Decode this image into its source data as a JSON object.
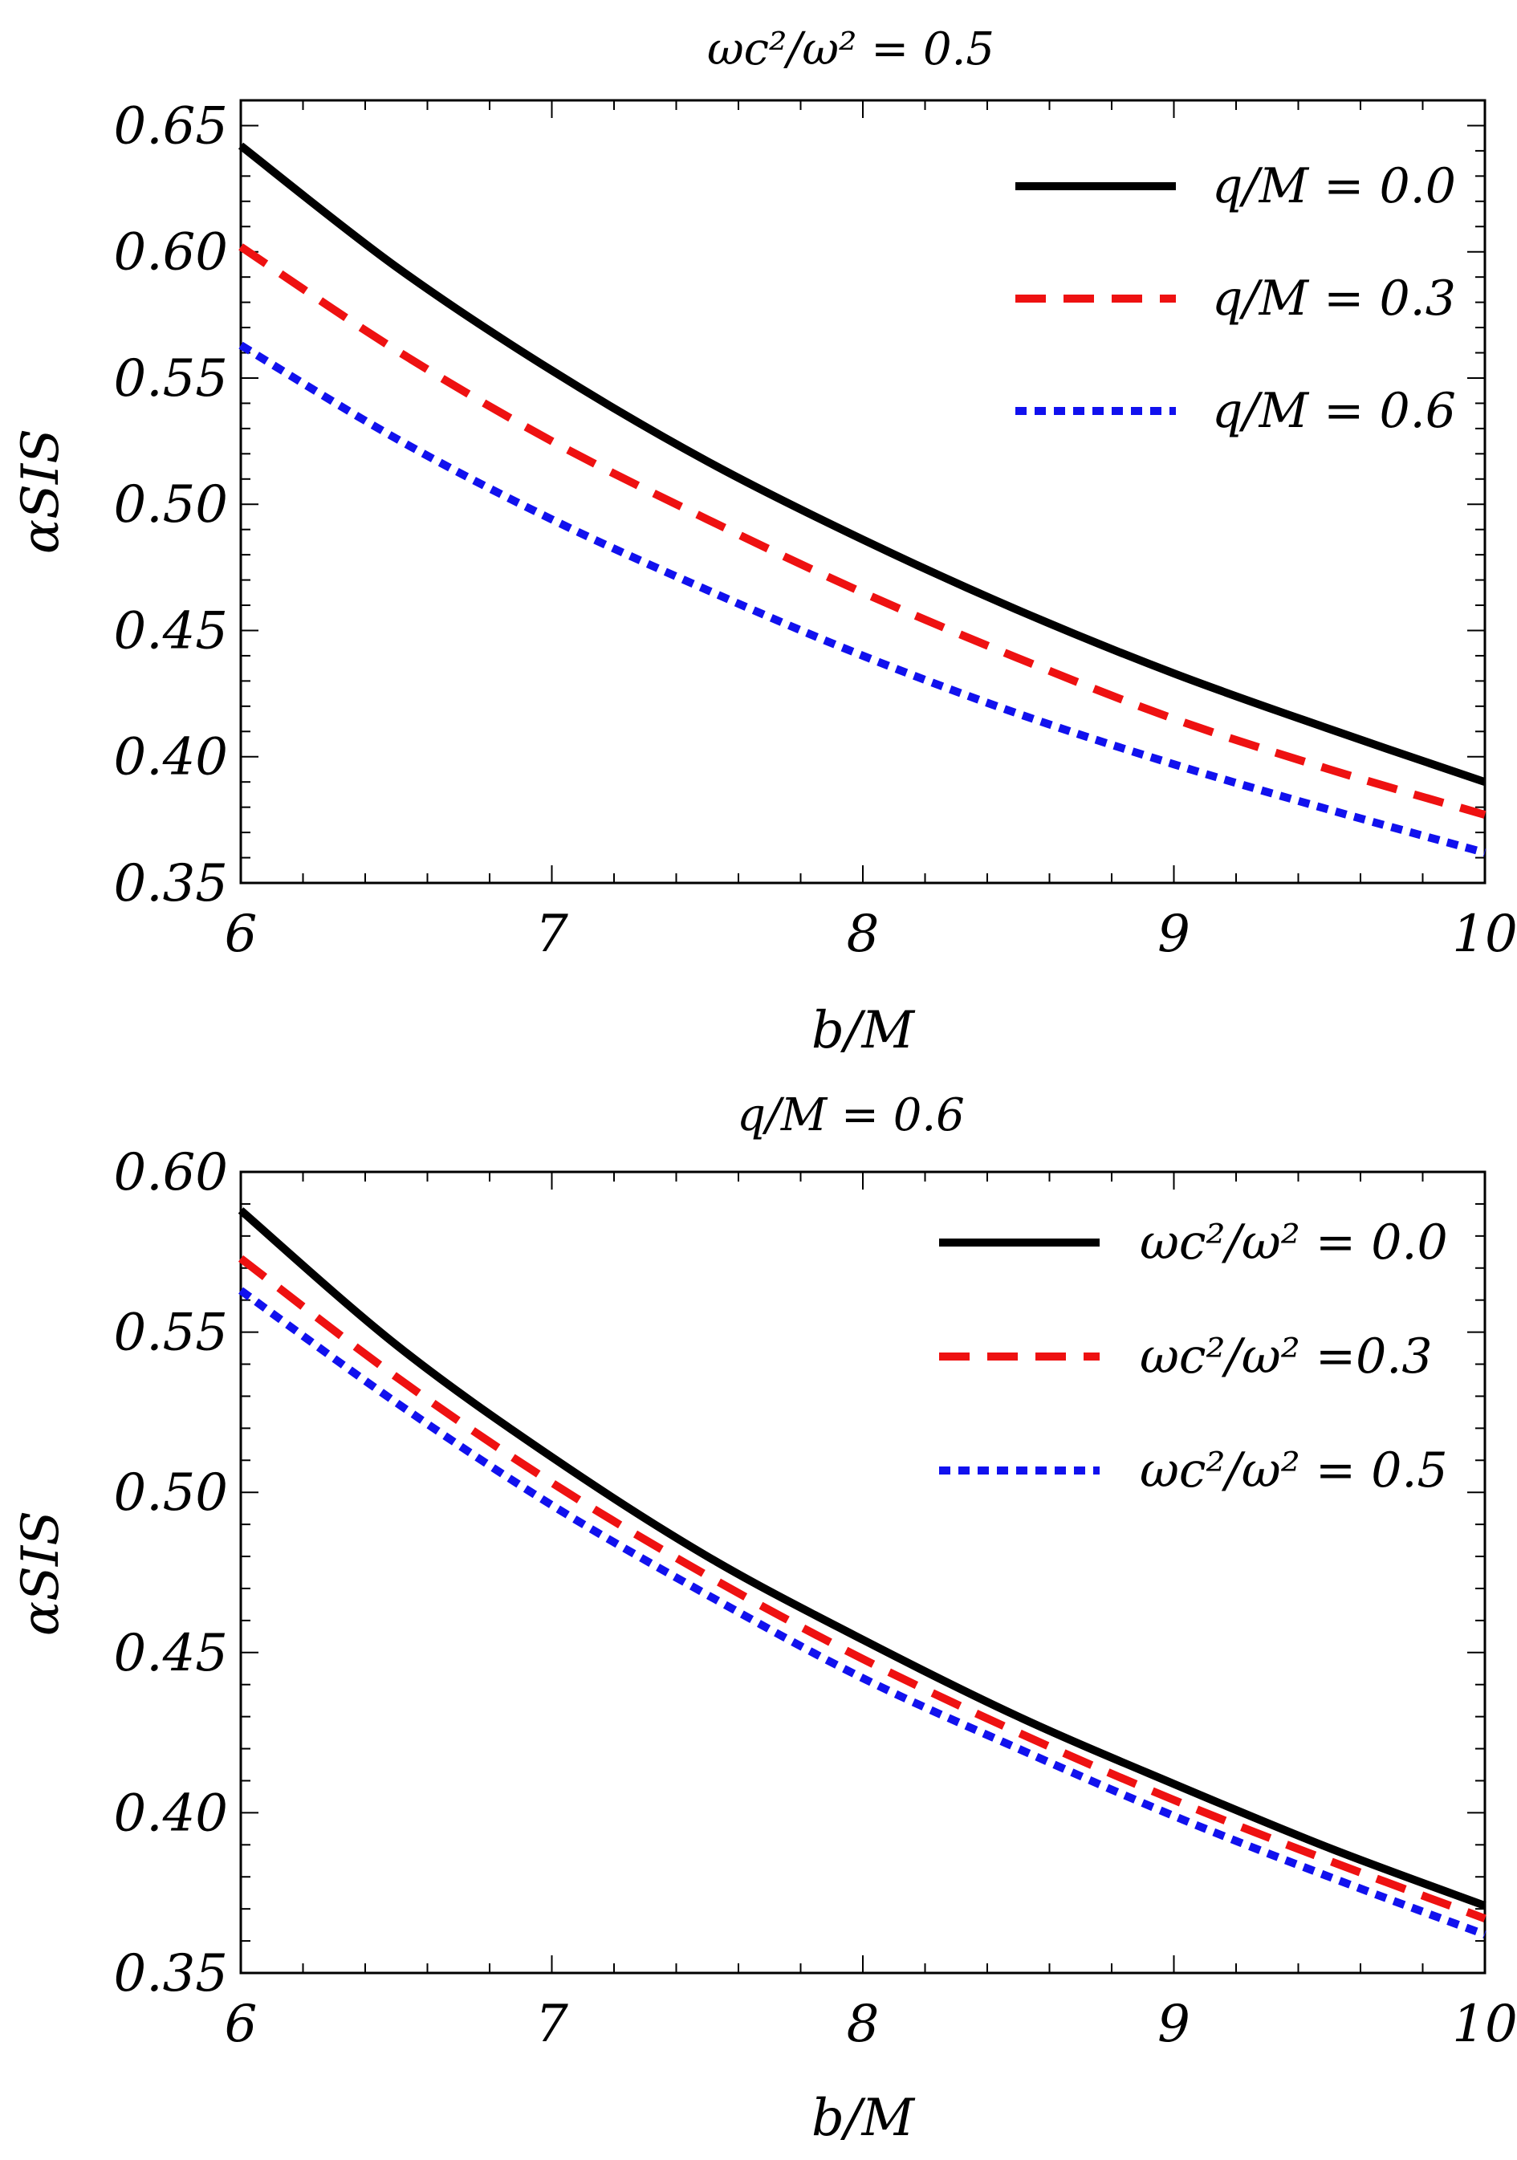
{
  "chart_data": [
    {
      "type": "line",
      "title": "ωc²/ω² = 0.5",
      "xlabel": "b/M",
      "ylabel": "αSIS",
      "xlim": [
        6,
        10
      ],
      "ylim": [
        0.35,
        0.66
      ],
      "xticks": [
        "6",
        "7",
        "8",
        "9",
        "10"
      ],
      "yticks": [
        "0.35",
        "0.40",
        "0.45",
        "0.50",
        "0.55",
        "0.60",
        "0.65"
      ],
      "legend_position": "top-right",
      "x": [
        6,
        6.5,
        7,
        7.5,
        8,
        8.5,
        9,
        9.5,
        10
      ],
      "series": [
        {
          "name": "q/M = 0.0",
          "style": "solid",
          "color": "#000000",
          "values": [
            0.642,
            0.594,
            0.553,
            0.517,
            0.486,
            0.458,
            0.433,
            0.411,
            0.39
          ]
        },
        {
          "name": "q/M = 0.3",
          "style": "dashed",
          "color": "#ee1111",
          "values": [
            0.602,
            0.561,
            0.525,
            0.494,
            0.465,
            0.439,
            0.415,
            0.395,
            0.377
          ]
        },
        {
          "name": "q/M = 0.6",
          "style": "dotted",
          "color": "#1111ee",
          "values": [
            0.563,
            0.526,
            0.494,
            0.466,
            0.44,
            0.417,
            0.397,
            0.379,
            0.362
          ]
        }
      ]
    },
    {
      "type": "line",
      "title": "q/M = 0.6",
      "xlabel": "b/M",
      "ylabel": "αSIS",
      "xlim": [
        6,
        10
      ],
      "ylim": [
        0.35,
        0.6
      ],
      "xticks": [
        "6",
        "7",
        "8",
        "9",
        "10"
      ],
      "yticks": [
        "0.35",
        "0.40",
        "0.45",
        "0.50",
        "0.55",
        "0.60"
      ],
      "legend_position": "top-right",
      "x": [
        6,
        6.5,
        7,
        7.5,
        8,
        8.5,
        9,
        9.5,
        10
      ],
      "series": [
        {
          "name": "ωc²/ω² = 0.0",
          "style": "solid",
          "color": "#000000",
          "values": [
            0.588,
            0.546,
            0.511,
            0.48,
            0.454,
            0.43,
            0.409,
            0.389,
            0.371
          ]
        },
        {
          "name": "ωc²/ω² =0.3",
          "style": "dashed",
          "color": "#ee1111",
          "values": [
            0.573,
            0.536,
            0.503,
            0.474,
            0.448,
            0.425,
            0.404,
            0.385,
            0.367
          ]
        },
        {
          "name": "ωc²/ω² = 0.5",
          "style": "dotted",
          "color": "#1111ee",
          "values": [
            0.563,
            0.528,
            0.496,
            0.468,
            0.442,
            0.42,
            0.399,
            0.38,
            0.362
          ]
        }
      ]
    }
  ]
}
